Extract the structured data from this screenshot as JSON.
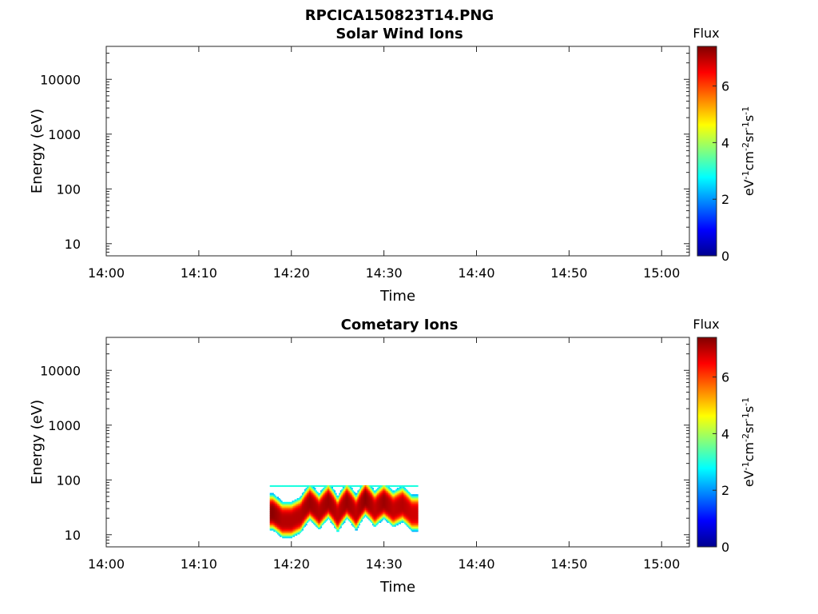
{
  "figure_title": "RPCICA150823T14.PNG",
  "colorbar": {
    "title": "Flux",
    "label": "eV-1cm-2sr-1s-1",
    "range": [
      0,
      7.4
    ],
    "ticks": [
      "0",
      "2",
      "4",
      "6"
    ],
    "colormap": "jet"
  },
  "chart_data": [
    {
      "type": "heatmap",
      "title": "Solar Wind Ions",
      "xlabel": "Time",
      "ylabel": "Energy (eV)",
      "x_ticks": [
        "14:00",
        "14:10",
        "14:20",
        "14:30",
        "14:40",
        "14:50",
        "15:00"
      ],
      "xlim": [
        "14:00",
        "15:03"
      ],
      "y_scale": "log",
      "y_ticks": [
        "10",
        "100",
        "1000",
        "10000"
      ],
      "ylim": [
        6,
        40000
      ],
      "data": []
    },
    {
      "type": "heatmap",
      "title": "Cometary Ions",
      "xlabel": "Time",
      "ylabel": "Energy (eV)",
      "x_ticks": [
        "14:00",
        "14:10",
        "14:20",
        "14:30",
        "14:40",
        "14:50",
        "15:00"
      ],
      "xlim": [
        "14:00",
        "15:03"
      ],
      "y_scale": "log",
      "y_ticks": [
        "10",
        "100",
        "1000",
        "10000"
      ],
      "ylim": [
        6,
        40000
      ],
      "data": {
        "time_range": [
          "14:17:40",
          "14:33:40"
        ],
        "energy_range_eV": [
          6,
          80
        ],
        "time_samples": [
          "14:18",
          "14:19",
          "14:20",
          "14:21",
          "14:22",
          "14:23",
          "14:24",
          "14:25",
          "14:26",
          "14:27",
          "14:28",
          "14:29",
          "14:30",
          "14:31",
          "14:32",
          "14:33"
        ],
        "peak_energy_eV": [
          25,
          18,
          18,
          22,
          38,
          25,
          40,
          22,
          40,
          24,
          45,
          28,
          40,
          28,
          35,
          24
        ],
        "peak_flux": [
          7.3,
          7.0,
          7.0,
          7.0,
          7.2,
          7.0,
          7.2,
          6.9,
          7.2,
          6.9,
          7.3,
          6.9,
          7.2,
          6.9,
          7.0,
          6.8
        ]
      }
    }
  ]
}
